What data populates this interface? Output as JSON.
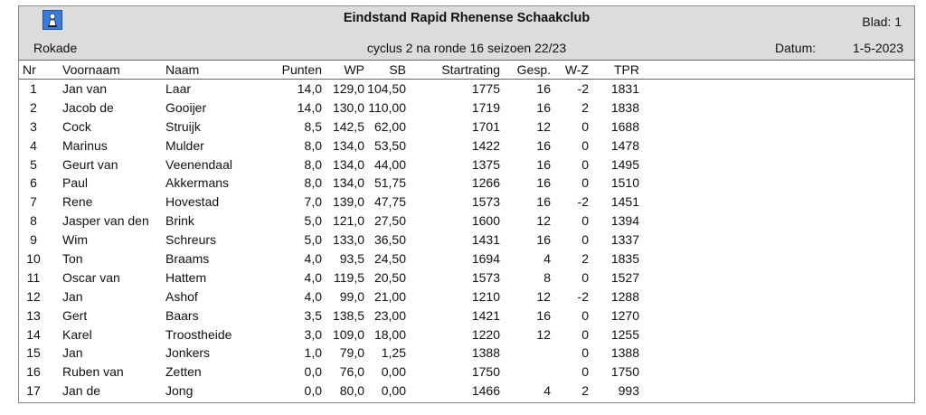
{
  "header": {
    "title": "Eindstand Rapid Rhenense Schaakclub",
    "blad": "Blad:   1",
    "club": "Rokade",
    "subtitle": "cyclus 2  na ronde 16  seizoen 22/23",
    "datum_label": "Datum:",
    "datum_value": "1-5-2023"
  },
  "columns": {
    "nr": "Nr",
    "voornaam": "Voornaam",
    "naam": "Naam",
    "punten": "Punten",
    "wp": "WP",
    "sb": "SB",
    "startrating": "Startrating",
    "gesp": "Gesp.",
    "wz": "W-Z",
    "tpr": "TPR"
  },
  "rows": [
    {
      "nr": "1",
      "voornaam": "Jan van",
      "naam": "Laar",
      "punten": "14,0",
      "wp": "129,0",
      "sb": "104,50",
      "startrating": "1775",
      "gesp": "16",
      "wz": "-2",
      "tpr": "1831"
    },
    {
      "nr": "2",
      "voornaam": "Jacob de",
      "naam": "Gooijer",
      "punten": "14,0",
      "wp": "130,0",
      "sb": "110,00",
      "startrating": "1719",
      "gesp": "16",
      "wz": "2",
      "tpr": "1838"
    },
    {
      "nr": "3",
      "voornaam": "Cock",
      "naam": "Struijk",
      "punten": "8,5",
      "wp": "142,5",
      "sb": "62,00",
      "startrating": "1701",
      "gesp": "12",
      "wz": "0",
      "tpr": "1688"
    },
    {
      "nr": "4",
      "voornaam": "Marinus",
      "naam": "Mulder",
      "punten": "8,0",
      "wp": "134,0",
      "sb": "53,50",
      "startrating": "1422",
      "gesp": "16",
      "wz": "0",
      "tpr": "1478"
    },
    {
      "nr": "5",
      "voornaam": "Geurt van",
      "naam": "Veenendaal",
      "punten": "8,0",
      "wp": "134,0",
      "sb": "44,00",
      "startrating": "1375",
      "gesp": "16",
      "wz": "0",
      "tpr": "1495"
    },
    {
      "nr": "6",
      "voornaam": "Paul",
      "naam": "Akkermans",
      "punten": "8,0",
      "wp": "134,0",
      "sb": "51,75",
      "startrating": "1266",
      "gesp": "16",
      "wz": "0",
      "tpr": "1510"
    },
    {
      "nr": "7",
      "voornaam": "Rene",
      "naam": "Hovestad",
      "punten": "7,0",
      "wp": "139,0",
      "sb": "47,75",
      "startrating": "1573",
      "gesp": "16",
      "wz": "-2",
      "tpr": "1451"
    },
    {
      "nr": "8",
      "voornaam": "Jasper van den",
      "naam": "Brink",
      "punten": "5,0",
      "wp": "121,0",
      "sb": "27,50",
      "startrating": "1600",
      "gesp": "12",
      "wz": "0",
      "tpr": "1394"
    },
    {
      "nr": "9",
      "voornaam": "Wim",
      "naam": "Schreurs",
      "punten": "5,0",
      "wp": "133,0",
      "sb": "36,50",
      "startrating": "1431",
      "gesp": "16",
      "wz": "0",
      "tpr": "1337"
    },
    {
      "nr": "10",
      "voornaam": "Ton",
      "naam": "Braams",
      "punten": "4,0",
      "wp": "93,5",
      "sb": "24,50",
      "startrating": "1694",
      "gesp": "4",
      "wz": "2",
      "tpr": "1835"
    },
    {
      "nr": "11",
      "voornaam": "Oscar van",
      "naam": "Hattem",
      "punten": "4,0",
      "wp": "119,5",
      "sb": "20,50",
      "startrating": "1573",
      "gesp": "8",
      "wz": "0",
      "tpr": "1527"
    },
    {
      "nr": "12",
      "voornaam": "Jan",
      "naam": "Ashof",
      "punten": "4,0",
      "wp": "99,0",
      "sb": "21,00",
      "startrating": "1210",
      "gesp": "12",
      "wz": "-2",
      "tpr": "1288"
    },
    {
      "nr": "13",
      "voornaam": "Gert",
      "naam": "Baars",
      "punten": "3,5",
      "wp": "138,5",
      "sb": "23,00",
      "startrating": "1421",
      "gesp": "16",
      "wz": "0",
      "tpr": "1270"
    },
    {
      "nr": "14",
      "voornaam": "Karel",
      "naam": "Troostheide",
      "punten": "3,0",
      "wp": "109,0",
      "sb": "18,00",
      "startrating": "1220",
      "gesp": "12",
      "wz": "0",
      "tpr": "1255"
    },
    {
      "nr": "15",
      "voornaam": "Jan",
      "naam": "Jonkers",
      "punten": "1,0",
      "wp": "79,0",
      "sb": "1,25",
      "startrating": "1388",
      "gesp": "",
      "wz": "0",
      "tpr": "1388"
    },
    {
      "nr": "16",
      "voornaam": "Ruben van",
      "naam": "Zetten",
      "punten": "0,0",
      "wp": "76,0",
      "sb": "0,00",
      "startrating": "1750",
      "gesp": "",
      "wz": "0",
      "tpr": "1750"
    },
    {
      "nr": "17",
      "voornaam": "Jan de",
      "naam": "Jong",
      "punten": "0,0",
      "wp": "80,0",
      "sb": "0,00",
      "startrating": "1466",
      "gesp": "4",
      "wz": "2",
      "tpr": "993"
    }
  ]
}
